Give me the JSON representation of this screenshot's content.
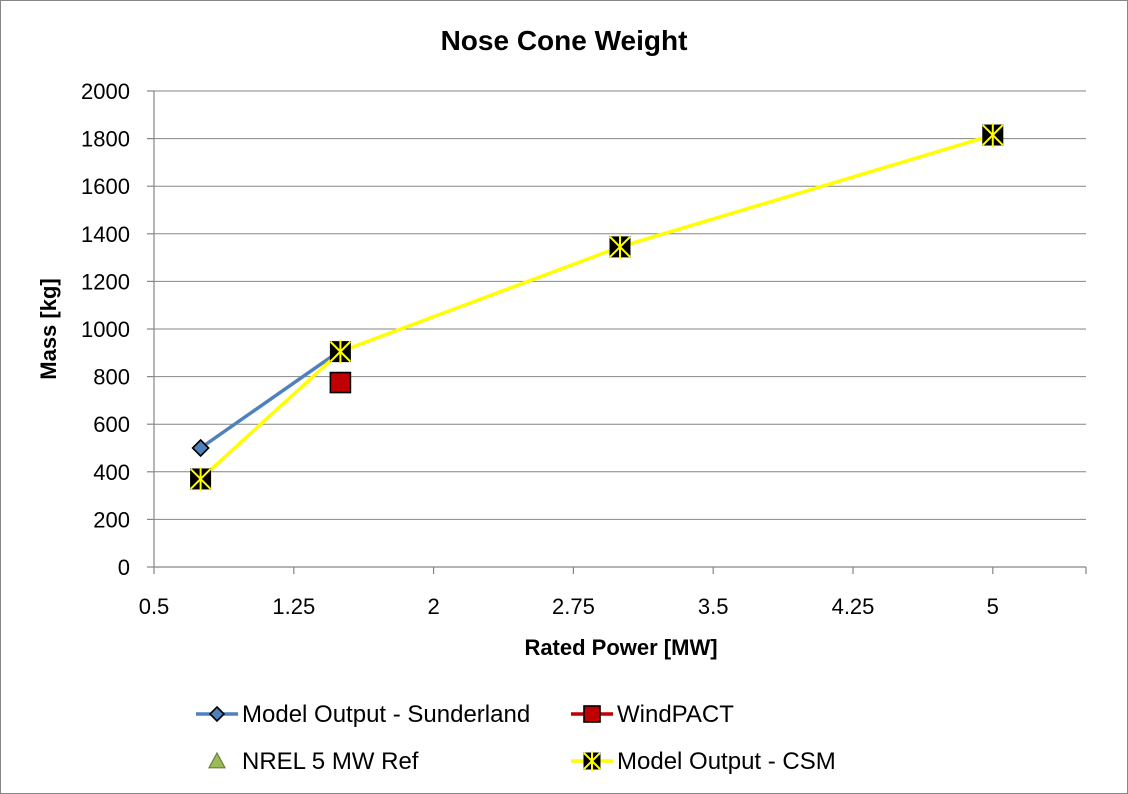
{
  "chart_data": {
    "type": "line",
    "title": "Nose Cone Weight",
    "xlabel": "Rated Power [MW]",
    "ylabel": "Mass [kg]",
    "xlim": [
      0.5,
      5.5
    ],
    "ylim": [
      0,
      2000
    ],
    "x_ticks": [
      "0.5",
      "1.25",
      "2",
      "2.75",
      "3.5",
      "4.25",
      "5"
    ],
    "x_tick_values": [
      0.5,
      1.25,
      2,
      2.75,
      3.5,
      4.25,
      5
    ],
    "y_ticks": [
      "0",
      "200",
      "400",
      "600",
      "800",
      "1000",
      "1200",
      "1400",
      "1600",
      "1800",
      "2000"
    ],
    "y_tick_values": [
      0,
      200,
      400,
      600,
      800,
      1000,
      1200,
      1400,
      1600,
      1800,
      2000
    ],
    "grid": "horizontal",
    "legend_position": "bottom",
    "series": [
      {
        "name": "Model Output - Sunderland",
        "color": "#4F81BD",
        "marker": "diamond",
        "x": [
          0.75,
          1.5
        ],
        "y": [
          500,
          910
        ]
      },
      {
        "name": "WindPACT",
        "color": "#C00000",
        "marker": "square",
        "x": [
          1.5
        ],
        "y": [
          775
        ]
      },
      {
        "name": "NREL 5 MW Ref",
        "color": "#9BBB59",
        "marker": "triangle",
        "x": [],
        "y": []
      },
      {
        "name": "Model Output - CSM",
        "color": "#FFFF00",
        "marker": "x-square",
        "x": [
          0.75,
          1.5,
          3,
          5
        ],
        "y": [
          370,
          905,
          1345,
          1815
        ]
      }
    ]
  }
}
